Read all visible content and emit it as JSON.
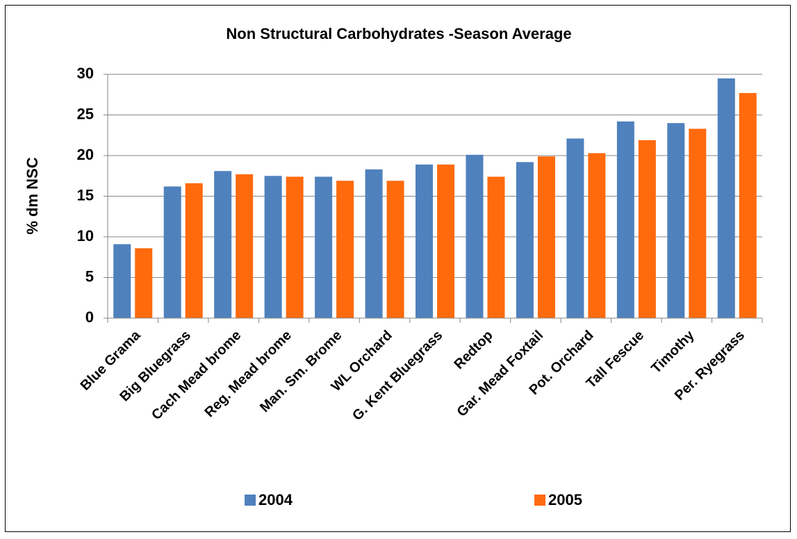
{
  "chart_data": {
    "type": "bar",
    "title": "Non Structural Carbohydrates -Season Average",
    "y_label": "% dm NSC",
    "categories": [
      "Blue Grama",
      "Big Bluegrass",
      "Cach Mead brome",
      "Reg. Mead brome",
      "Man. Sm. Brome",
      "WL Orchard",
      "G. Kent Bluegrass",
      "Redtop",
      "Gar. Mead Foxtail",
      "Pot. Orchard",
      "Tall Fescue",
      "Timothy",
      "Per. Ryegrass"
    ],
    "series": [
      {
        "name": "2004",
        "color": "#4f81bd",
        "values": [
          9.1,
          16.2,
          18.1,
          17.5,
          17.4,
          18.3,
          18.9,
          20.1,
          19.2,
          22.1,
          24.2,
          24.0,
          29.5
        ]
      },
      {
        "name": "2005",
        "color": "#ff6a0d",
        "values": [
          8.6,
          16.6,
          17.7,
          17.4,
          16.9,
          16.9,
          18.9,
          17.4,
          19.9,
          20.3,
          21.9,
          23.3,
          27.7
        ]
      }
    ],
    "ylim": [
      0,
      30
    ],
    "yticks": [
      0,
      5,
      10,
      15,
      20,
      25,
      30
    ],
    "grid": true,
    "legend": "bottom"
  }
}
